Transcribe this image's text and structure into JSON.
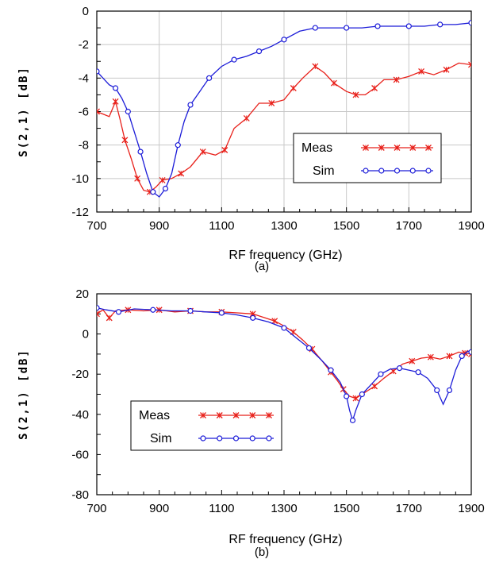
{
  "chart_data": [
    {
      "type": "line",
      "subtitle": "(a)",
      "xlabel": "RF frequency (GHz)",
      "ylabel": "S(2,1)  [dB]",
      "xlim": [
        700,
        1900
      ],
      "ylim": [
        -12,
        0
      ],
      "xticks": [
        "700",
        "900",
        "1100",
        "1300",
        "1500",
        "1700",
        "1900"
      ],
      "yticks": [
        "0",
        "-2",
        "-4",
        "-6",
        "-8",
        "-10",
        "-12"
      ],
      "grid": true,
      "legend_position": "middle-right",
      "series": [
        {
          "name": "Meas",
          "color": "#e8201a",
          "marker": "x",
          "x": [
            700,
            740,
            760,
            775,
            790,
            810,
            830,
            850,
            870,
            890,
            910,
            940,
            970,
            1000,
            1040,
            1080,
            1110,
            1140,
            1180,
            1220,
            1260,
            1300,
            1330,
            1360,
            1400,
            1430,
            1460,
            1500,
            1530,
            1560,
            1590,
            1620,
            1660,
            1700,
            1740,
            1780,
            1820,
            1860,
            1900
          ],
          "y": [
            -6.0,
            -6.3,
            -5.4,
            -6.5,
            -7.7,
            -8.8,
            -10.0,
            -10.7,
            -10.8,
            -10.5,
            -10.1,
            -10.0,
            -9.7,
            -9.3,
            -8.4,
            -8.6,
            -8.3,
            -7.0,
            -6.4,
            -5.5,
            -5.5,
            -5.3,
            -4.6,
            -4.0,
            -3.3,
            -3.7,
            -4.3,
            -4.8,
            -5.0,
            -5.0,
            -4.6,
            -4.1,
            -4.1,
            -3.9,
            -3.6,
            -3.8,
            -3.5,
            -3.1,
            -3.2
          ]
        },
        {
          "name": "Sim",
          "color": "#1c1cd8",
          "marker": "o",
          "x": [
            700,
            740,
            760,
            780,
            800,
            820,
            840,
            860,
            880,
            900,
            920,
            940,
            960,
            980,
            1000,
            1030,
            1060,
            1100,
            1140,
            1180,
            1220,
            1260,
            1300,
            1350,
            1400,
            1450,
            1500,
            1550,
            1600,
            1650,
            1700,
            1750,
            1800,
            1850,
            1900
          ],
          "y": [
            -3.6,
            -4.4,
            -4.6,
            -5.2,
            -6.0,
            -7.2,
            -8.4,
            -9.7,
            -10.8,
            -11.1,
            -10.6,
            -9.7,
            -8.0,
            -6.6,
            -5.6,
            -4.8,
            -4.0,
            -3.3,
            -2.9,
            -2.7,
            -2.4,
            -2.1,
            -1.7,
            -1.2,
            -1.0,
            -1.0,
            -1.0,
            -1.0,
            -0.9,
            -0.9,
            -0.9,
            -0.9,
            -0.8,
            -0.8,
            -0.7
          ]
        }
      ]
    },
    {
      "type": "line",
      "subtitle": "(b)",
      "xlabel": "RF frequency (GHz)",
      "ylabel": "S(2,1)  [dB]",
      "xlim": [
        700,
        1900
      ],
      "ylim": [
        -80,
        20
      ],
      "xticks": [
        "700",
        "900",
        "1100",
        "1300",
        "1500",
        "1700",
        "1900"
      ],
      "yticks": [
        "20",
        "0",
        "-20",
        "-40",
        "-60",
        "-80"
      ],
      "grid": false,
      "legend_position": "middle-left",
      "series": [
        {
          "name": "Meas",
          "color": "#e8201a",
          "marker": "x",
          "x": [
            700,
            720,
            740,
            760,
            800,
            850,
            900,
            950,
            1000,
            1050,
            1100,
            1150,
            1200,
            1240,
            1270,
            1300,
            1330,
            1360,
            1390,
            1420,
            1450,
            1470,
            1490,
            1510,
            1530,
            1560,
            1590,
            1620,
            1650,
            1680,
            1710,
            1740,
            1770,
            1800,
            1830,
            1860,
            1880,
            1900
          ],
          "y": [
            10.0,
            12.0,
            8.0,
            11.5,
            12.0,
            11.5,
            12.0,
            11.0,
            11.5,
            11.0,
            11.0,
            10.5,
            10.0,
            8.0,
            6.5,
            4.0,
            1.0,
            -3.0,
            -7.5,
            -13.0,
            -19.0,
            -23.0,
            -27.5,
            -31.0,
            -32.0,
            -29.0,
            -26.0,
            -22.0,
            -18.5,
            -15.0,
            -13.5,
            -12.0,
            -11.5,
            -12.5,
            -11.0,
            -9.0,
            -9.5,
            -10.0
          ]
        },
        {
          "name": "Sim",
          "color": "#1c1cd8",
          "marker": "o",
          "x": [
            700,
            730,
            770,
            820,
            880,
            940,
            1000,
            1050,
            1100,
            1150,
            1200,
            1250,
            1300,
            1340,
            1380,
            1420,
            1450,
            1480,
            1500,
            1510,
            1520,
            1530,
            1550,
            1580,
            1610,
            1640,
            1670,
            1700,
            1730,
            1760,
            1790,
            1810,
            1830,
            1850,
            1870,
            1890,
            1900
          ],
          "y": [
            13.0,
            12.0,
            11.0,
            12.5,
            12.0,
            11.5,
            11.5,
            11.0,
            10.5,
            9.5,
            8.0,
            6.0,
            3.0,
            -2.0,
            -7.0,
            -13.0,
            -18.0,
            -24.0,
            -31.0,
            -38.0,
            -43.0,
            -38.0,
            -30.0,
            -25.0,
            -20.0,
            -17.5,
            -17.0,
            -18.0,
            -19.0,
            -22.0,
            -28.0,
            -35.0,
            -28.0,
            -18.0,
            -11.0,
            -8.5,
            -9.0
          ]
        }
      ]
    }
  ]
}
